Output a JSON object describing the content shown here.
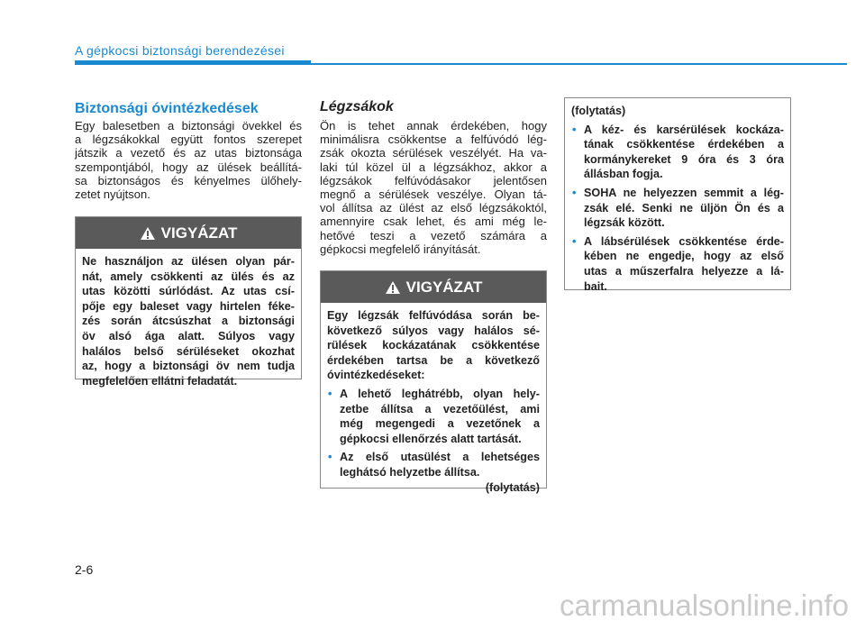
{
  "header": {
    "section": "A gépkocsi biztonsági berendezései",
    "page": "2-6"
  },
  "column1": {
    "heading": "Biztonsági óvintézkedések",
    "paragraph": [
      "Egy balesetben a biztonsági övekkel és",
      "a légzsákokkal együtt fontos szerepet",
      "játszik a vezető és az utas biztonsága",
      "szempontjából, hogy az ülések beállítá-",
      "sa biztonságos és kényelmes ülőhely-",
      "zetet nyújtson."
    ],
    "warning": {
      "label": "VIGYÁZAT",
      "body": [
        "Ne használjon az ülésen olyan pár-",
        "nát, amely csökkenti az ülés és az",
        "utas közötti súrlódást. Az utas csí-",
        "pője egy baleset vagy hirtelen féke-",
        "zés során átcsúszhat a biztonsági",
        "öv alsó ága alatt. Súlyos vagy",
        "halálos belső sérüléseket okozhat",
        "az, hogy a biztonsági öv nem tudja",
        "megfelelően ellátni feladatát."
      ]
    }
  },
  "column2": {
    "heading": "Légzsákok",
    "paragraph": [
      "Ön is tehet annak érdekében, hogy",
      "minimálisra csökkentse a felfúvódó lég-",
      "zsák okozta sérülések veszélyét. Ha va-",
      "laki túl közel ül a légzsákhoz, akkor a",
      "légzsákok felfúvódásakor jelentősen",
      "megnő a sérülések veszélye. Olyan tá-",
      "vol állítsa az ülést az első légzsákoktól,",
      "amennyire csak lehet, és ami még le-",
      "hetővé teszi a vezető számára a",
      "gépkocsi megfelelő irányítását."
    ],
    "warning": {
      "label": "VIGYÁZAT",
      "intro": [
        "Egy légzsák felfúvódása során be-",
        "következő súlyos vagy halálos sé-",
        "rülések kockázatának csökkentése",
        "érdekében tartsa be a következő",
        "óvintézkedéseket:"
      ],
      "bullets": [
        [
          "A lehető leghátrébb, olyan hely-",
          "zetbe állítsa a vezetőülést, ami",
          "még megengedi a vezetőnek a",
          "gépkocsi ellenőrzés alatt tartását."
        ],
        [
          "Az első utasülést a lehetséges",
          "leghátsó helyzetbe állítsa."
        ]
      ],
      "continued": "(folytatás)"
    }
  },
  "column3": {
    "box": {
      "continued": "(folytatás)",
      "bullets": [
        [
          "A kéz- és karsérülések kockáza-",
          "tának csökkentése érdekében a",
          "kormánykereket 9 óra és 3 óra",
          "állásban fogja."
        ],
        [
          "SOHA ne helyezzen semmit a lég-",
          "zsák elé. Senki ne üljön Ön és a",
          "légzsák között."
        ],
        [
          "A lábsérülések csökkentése érde-",
          "kében ne engedje, hogy az első",
          "utas a műszerfalra helyezze a lá-",
          "bait."
        ]
      ]
    }
  },
  "watermark": "carmanualsonline.info"
}
